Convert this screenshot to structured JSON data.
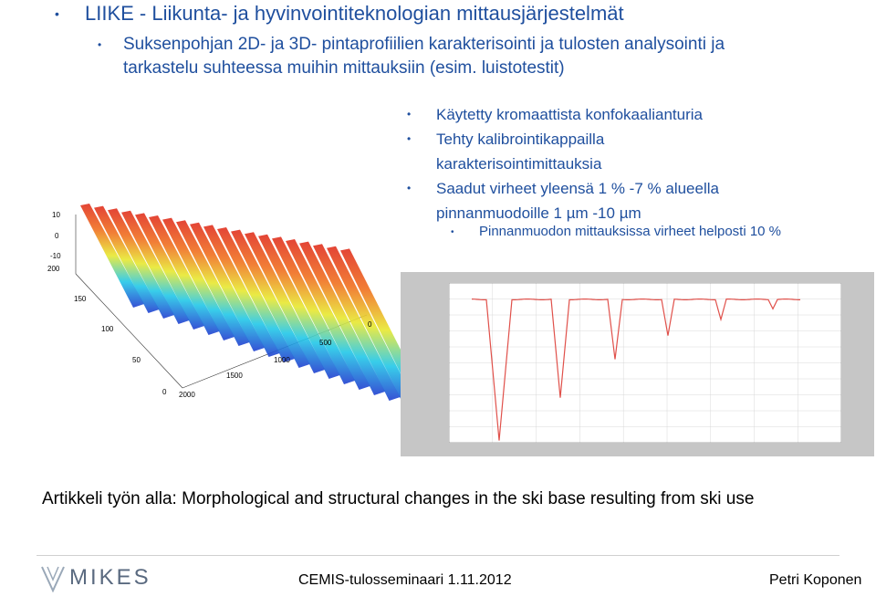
{
  "title": "LIIKE - Liikunta- ja hyvinvointiteknologian mittausjärjestelmät",
  "subtitle": "Suksenpohjan 2D- ja 3D- pintaprofiilien karakterisointi ja tulosten analysointi ja tarkastelu suhteessa muihin mittauksiin (esim. luistotestit)",
  "bullets": [
    "Käytetty kromaattista konfokaalianturia",
    "Tehty kalibrointikappailla karakterisointimittauksia",
    "Saadut virheet yleensä 1 % -7 % alueella pinnanmuodoille 1 µm -10 µm"
  ],
  "sub_bullet": "Pinnanmuodon mittauksissa virheet helposti 10 %",
  "plot3d_labels": {
    "z_ticks": [
      "10",
      "0",
      "-10"
    ],
    "y_ticks": [
      "200",
      "150",
      "100",
      "50",
      "0"
    ],
    "x_ticks": [
      "0",
      "500",
      "1000",
      "1500",
      "2000"
    ]
  },
  "colors": {
    "title_blue": "#1f4f9e",
    "trace_red": "#e0504a"
  },
  "article_line": "Artikkeli työn alla: Morphological and structural changes in the ski base resulting from ski use",
  "footer": {
    "logo": "MIKES",
    "event": "CEMIS-tulosseminaari 1.11.2012",
    "author": "Petri Koponen"
  }
}
